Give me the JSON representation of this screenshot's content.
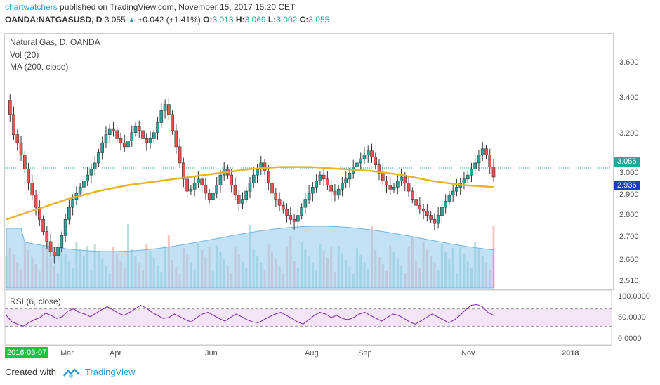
{
  "header": {
    "author": "chartwatchers",
    "published_text": "published on TradingView.com, November 15, 2017 15:20 CET",
    "symbol": "OANDA:NATGASUSD, D",
    "last": "3.055",
    "change": "+0.042 (+1.41%)",
    "o_label": "O:",
    "o": "3.013",
    "h_label": "H:",
    "h": "3.069",
    "l_label": "L:",
    "l": "3.002",
    "c_label": "C:",
    "c": "3.055"
  },
  "legend": {
    "instrument": "Natural Gas, D, OANDA",
    "volume": "Vol (20)",
    "ma": "MA (200, close)",
    "rsi": "RSI (6, close)"
  },
  "price_axis": {
    "ticks": [
      "3.600",
      "3.400",
      "3.200",
      "3.000",
      "2.900",
      "2.800",
      "2.700",
      "2.600",
      "2.510"
    ],
    "last_price": "3.055",
    "ma_value": "2.936"
  },
  "rsi_axis": {
    "ticks": [
      "100.0000",
      "50.0000",
      "0.0000"
    ]
  },
  "time_axis": {
    "first_date": "2016-03-07",
    "labels": [
      "Mar",
      "Apr",
      "Jun",
      "Aug",
      "Sep",
      "Nov",
      "2018"
    ]
  },
  "footer": {
    "created_with": "Created with",
    "brand": "TradingView"
  },
  "colors": {
    "up": "#26a69a",
    "down": "#ef5350",
    "ma": "#e8b422",
    "volume_ma": "#90c8ec",
    "rsi_line": "#7b1fa2",
    "rsi_band": "#f3e5f5",
    "last_price_badge": "#26a69a",
    "ma_badge": "#1b3fc4"
  },
  "chart_data": {
    "type": "candlestick",
    "title": "Natural Gas, D, OANDA",
    "ylim": [
      2.46,
      3.72
    ],
    "price_series": [
      3.39,
      3.32,
      3.22,
      3.18,
      3.12,
      3.05,
      2.98,
      2.92,
      2.86,
      2.8,
      2.74,
      2.69,
      2.64,
      2.62,
      2.66,
      2.72,
      2.8,
      2.86,
      2.9,
      2.93,
      2.96,
      2.99,
      3.02,
      3.05,
      3.08,
      3.13,
      3.18,
      3.22,
      3.25,
      3.24,
      3.2,
      3.18,
      3.16,
      3.19,
      3.23,
      3.26,
      3.24,
      3.2,
      3.18,
      3.2,
      3.23,
      3.28,
      3.34,
      3.37,
      3.32,
      3.24,
      3.16,
      3.08,
      3.0,
      2.94,
      2.95,
      2.98,
      3.0,
      2.97,
      2.93,
      2.9,
      2.93,
      2.97,
      3.02,
      3.05,
      3.02,
      2.97,
      2.92,
      2.88,
      2.9,
      2.94,
      2.98,
      3.02,
      3.05,
      3.08,
      3.04,
      2.98,
      2.93,
      2.9,
      2.87,
      2.85,
      2.82,
      2.8,
      2.79,
      2.82,
      2.86,
      2.9,
      2.93,
      2.96,
      2.99,
      3.02,
      3.0,
      2.97,
      2.94,
      2.92,
      2.95,
      2.98,
      3.0,
      3.03,
      3.06,
      3.08,
      3.1,
      3.12,
      3.14,
      3.11,
      3.07,
      3.03,
      2.99,
      2.97,
      2.95,
      2.96,
      2.99,
      3.01,
      2.98,
      2.94,
      2.9,
      2.87,
      2.85,
      2.84,
      2.82,
      2.8,
      2.78,
      2.82,
      2.86,
      2.89,
      2.92,
      2.94,
      2.96,
      2.98,
      3.0,
      3.02,
      3.05,
      3.08,
      3.12,
      3.15,
      3.12,
      3.06,
      3.01
    ],
    "ma200": [
      2.8,
      2.85,
      2.9,
      2.94,
      2.97,
      2.99,
      3.01,
      3.03,
      3.05,
      3.06,
      3.06,
      3.05,
      3.04,
      3.02,
      2.99,
      2.97,
      2.96
    ],
    "rsi": [
      55,
      40,
      35,
      30,
      38,
      45,
      50,
      60,
      55,
      48,
      52,
      65,
      70,
      62,
      58,
      52,
      60,
      68,
      75,
      68,
      60,
      55,
      62,
      70,
      78,
      72,
      62,
      55,
      48,
      50,
      58,
      52,
      45,
      40,
      50,
      58,
      62,
      55,
      48,
      42,
      50,
      58,
      52,
      45,
      40,
      38,
      45,
      52,
      58,
      62,
      55,
      48,
      40,
      35,
      45,
      55,
      62,
      58,
      50,
      55,
      48,
      45,
      50,
      58,
      62,
      55,
      48,
      42,
      50,
      58,
      55,
      48,
      40,
      35,
      42,
      50,
      58,
      52,
      45,
      38,
      45,
      55,
      68,
      78,
      80,
      75,
      62,
      55
    ],
    "rsi_ylim": [
      0,
      100
    ],
    "rsi_bands": [
      30,
      70
    ]
  }
}
